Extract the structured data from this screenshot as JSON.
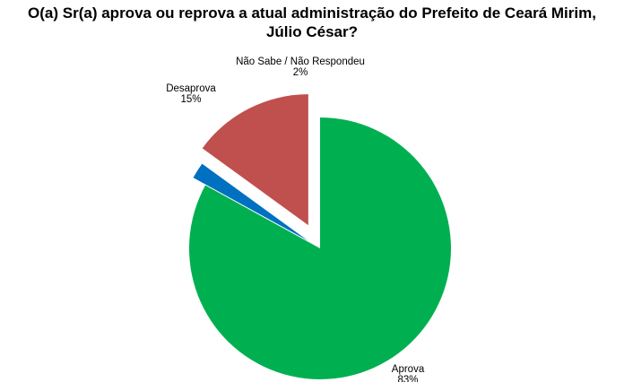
{
  "chart_data": {
    "type": "pie",
    "title": "O(a) Sr(a) aprova ou reprova a atual administração do Prefeito de Ceará Mirim, Júlio César?",
    "title_lines": [
      "O(a) Sr(a) aprova ou reprova a atual administração do Prefeito de Ceará Mirim,",
      "Júlio César?"
    ],
    "slices": [
      {
        "name": "Aprova",
        "value": 83,
        "label": "83%",
        "color": "#00b050"
      },
      {
        "name": "Não Sabe / Não Respondeu",
        "value": 2,
        "label": "2%",
        "color": "#0070c0"
      },
      {
        "name": "Desaprova",
        "value": 15,
        "label": "15%",
        "color": "#c0504d"
      }
    ],
    "legend": "none"
  }
}
